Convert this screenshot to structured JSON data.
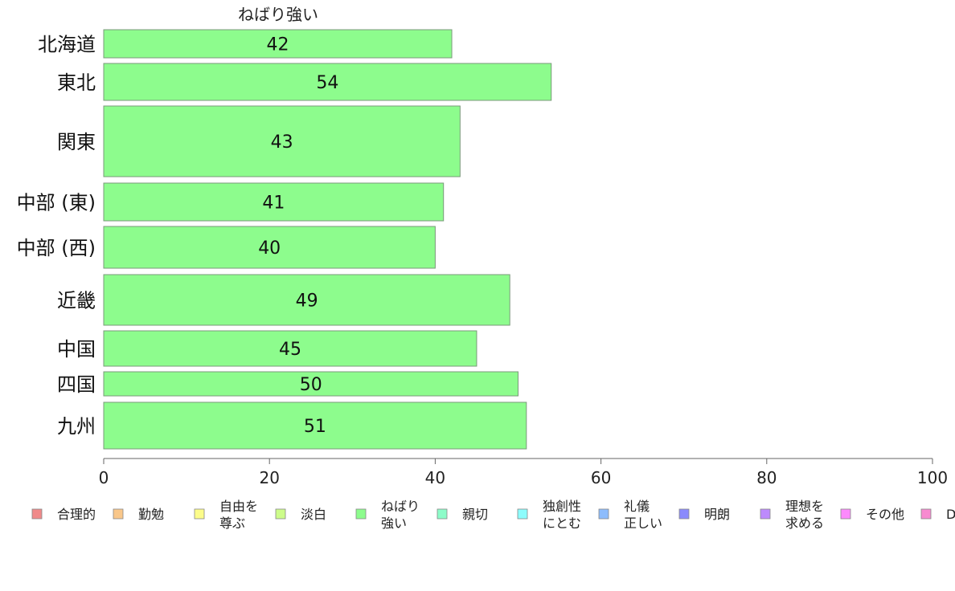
{
  "chart_data": {
    "type": "bar",
    "orientation": "horizontal",
    "title": "ねばり強い",
    "categories": [
      "北海道",
      "東北",
      "関東",
      "中部 (東)",
      "中部 (西)",
      "近畿",
      "中国",
      "四国",
      "九州"
    ],
    "values": [
      42,
      54,
      43,
      41,
      40,
      49,
      45,
      50,
      51
    ],
    "value_labels": [
      "42",
      "54",
      "43",
      "41",
      "40",
      "49",
      "45",
      "50",
      "51"
    ],
    "bar_color": "#8dfc8d",
    "xlim": [
      0,
      100
    ],
    "xticks": [
      0,
      20,
      40,
      60,
      80,
      100
    ],
    "xtick_labels": [
      "0",
      "20",
      "40",
      "60",
      "80",
      "100"
    ],
    "grid": false,
    "legend_position": "bottom",
    "legend": [
      {
        "lines": [
          "合理的"
        ],
        "color": "#f08a8a"
      },
      {
        "lines": [
          "勤勉"
        ],
        "color": "#f9c78a"
      },
      {
        "lines": [
          "自由を",
          "尊ぶ"
        ],
        "color": "#fcfc8a"
      },
      {
        "lines": [
          "淡白"
        ],
        "color": "#cdfc8a"
      },
      {
        "lines": [
          "ねばり",
          "強い"
        ],
        "color": "#8dfc8d"
      },
      {
        "lines": [
          "親切"
        ],
        "color": "#8dfcc9"
      },
      {
        "lines": [
          "独創性",
          "にとむ"
        ],
        "color": "#8dfcfc"
      },
      {
        "lines": [
          "礼儀",
          "正しい"
        ],
        "color": "#8dbcfc"
      },
      {
        "lines": [
          "明朗"
        ],
        "color": "#8a8afc"
      },
      {
        "lines": [
          "理想を",
          "求める"
        ],
        "color": "#bd8afc"
      },
      {
        "lines": [
          "その他"
        ],
        "color": "#fc8afc"
      },
      {
        "lines": [
          "D"
        ],
        "color": "#f78ad0"
      }
    ]
  }
}
